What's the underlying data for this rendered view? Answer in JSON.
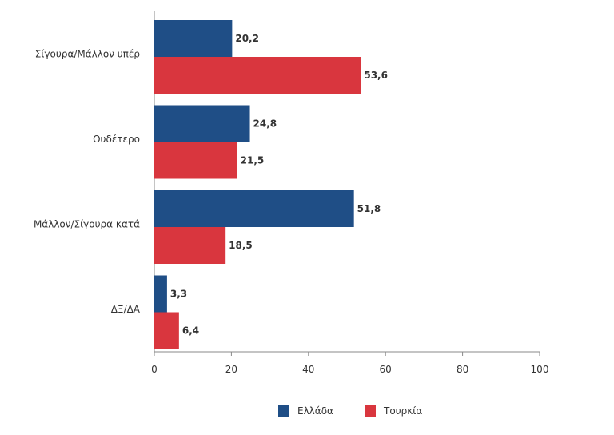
{
  "chart_data": {
    "type": "bar",
    "orientation": "horizontal",
    "categories": [
      "Σίγουρα/Μάλλον υπέρ",
      "Ουδέτερο",
      "Μάλλον/Σίγουρα κατά",
      "ΔΞ/ΔΑ"
    ],
    "series": [
      {
        "name": "Ελλάδα",
        "color": "#1f4e86",
        "values": [
          20.2,
          24.8,
          51.8,
          3.3
        ],
        "labels": [
          "20,2",
          "24,8",
          "51,8",
          "3,3"
        ]
      },
      {
        "name": "Τουρκία",
        "color": "#d9363e",
        "values": [
          53.6,
          21.5,
          18.5,
          6.4
        ],
        "labels": [
          "53,6",
          "21,5",
          "18,5",
          "6,4"
        ]
      }
    ],
    "xlim": [
      0,
      100
    ],
    "xticks": [
      0,
      20,
      40,
      60,
      80,
      100
    ],
    "xtick_labels": [
      "0",
      "20",
      "40",
      "60",
      "80",
      "100"
    ],
    "grid": false,
    "legend_position": "bottom"
  }
}
